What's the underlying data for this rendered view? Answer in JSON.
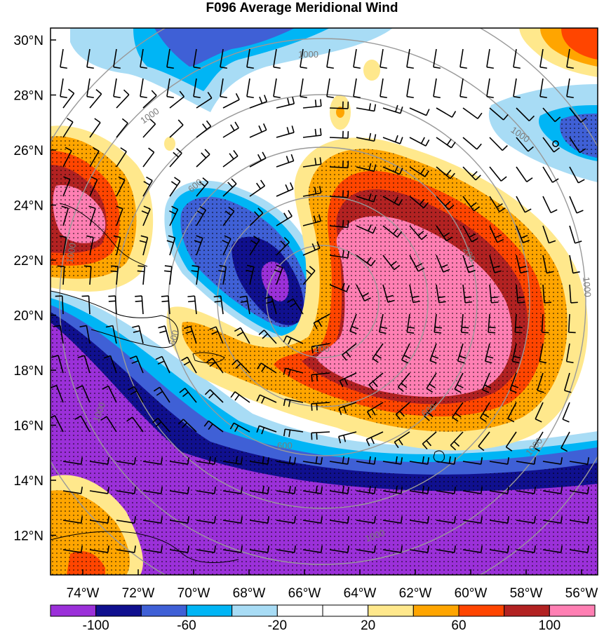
{
  "title": "F096 Average Meridional Wind",
  "lat_labels": [
    "30°N",
    "28°N",
    "26°N",
    "24°N",
    "22°N",
    "20°N",
    "18°N",
    "16°N",
    "14°N",
    "12°N"
  ],
  "lon_labels": [
    "74°W",
    "72°W",
    "70°W",
    "68°W",
    "66°W",
    "64°W",
    "62°W",
    "60°W",
    "58°W",
    "56°W"
  ],
  "colorbar": {
    "colors": [
      "#9b30d9",
      "#10108f",
      "#3f60d6",
      "#00b5f5",
      "#a8dcf5",
      "#ffffff",
      "#ffffff",
      "#ffe88c",
      "#ffa500",
      "#ff4500",
      "#b22222",
      "#ff7fb3"
    ],
    "labels": [
      "-100",
      "-60",
      "-20",
      "20",
      "60",
      "100"
    ]
  },
  "ring_labels": [
    "1000",
    "1000",
    "600",
    "200",
    "600",
    "1000",
    "1000",
    "600",
    "200",
    "600",
    "1000",
    "1000",
    "1000",
    "1000"
  ],
  "colors": {
    "neg_lightest": "#a8dcf5",
    "neg_light": "#00b5f5",
    "neg_mid": "#3f60d6",
    "neg_dark": "#10108f",
    "neg_darkest": "#9b30d9",
    "pos_lightest": "#ffe88c",
    "pos_light": "#ffa500",
    "pos_mid": "#ff4500",
    "pos_dark": "#b22222",
    "pos_darkest": "#ff7fb3"
  }
}
